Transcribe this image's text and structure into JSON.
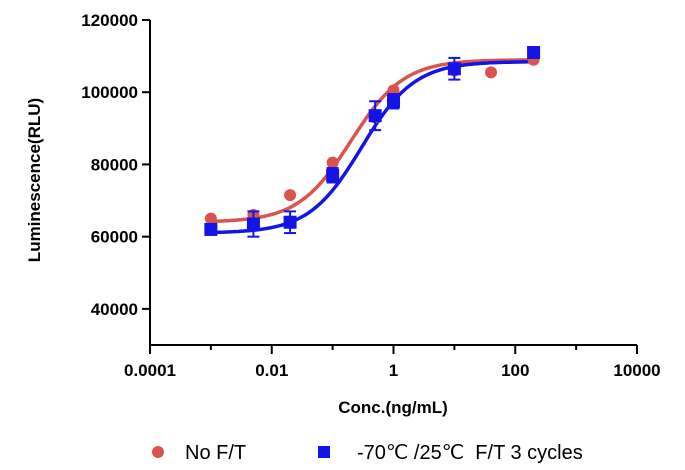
{
  "chart_data": {
    "type": "scatter",
    "xlabel": "Conc.(ng/mL)",
    "ylabel": "Luminescence(RLU)",
    "x_scale": "log",
    "xlim": [
      0.0001,
      10000
    ],
    "ylim": [
      30000,
      120000
    ],
    "x_ticks": [
      0.0001,
      0.01,
      1,
      100,
      10000
    ],
    "x_tick_labels": [
      "0.0001",
      "0.01",
      "1",
      "100",
      "10000"
    ],
    "y_ticks": [
      40000,
      60000,
      80000,
      100000,
      120000
    ],
    "y_tick_labels": [
      "40000",
      "60000",
      "80000",
      "100000",
      "120000"
    ],
    "grid": false,
    "legend_position": "bottom",
    "series": [
      {
        "name": "No F/T",
        "color": "#d9534f",
        "marker": "circle",
        "x": [
          0.001,
          0.005,
          0.02,
          0.1,
          0.5,
          1,
          10,
          40,
          200
        ],
        "y": [
          65000,
          66000,
          71500,
          80500,
          93000,
          100500,
          106000,
          105500,
          109000
        ],
        "fit": {
          "bottom": 64000,
          "top": 109000,
          "ec50": 0.2,
          "hill": 1.0
        }
      },
      {
        "name": "-70℃ /25℃  F/T 3 cycles",
        "color": "#1414e6",
        "marker": "square",
        "x": [
          0.001,
          0.005,
          0.02,
          0.1,
          0.5,
          1,
          10,
          200
        ],
        "y": [
          62000,
          63500,
          64000,
          77000,
          93500,
          97500,
          106500,
          111000
        ],
        "err": [
          0,
          3500,
          3000,
          2000,
          4000,
          2000,
          3000,
          1500
        ],
        "fit": {
          "bottom": 61000,
          "top": 108500,
          "ec50": 0.3,
          "hill": 1.0
        }
      }
    ]
  }
}
